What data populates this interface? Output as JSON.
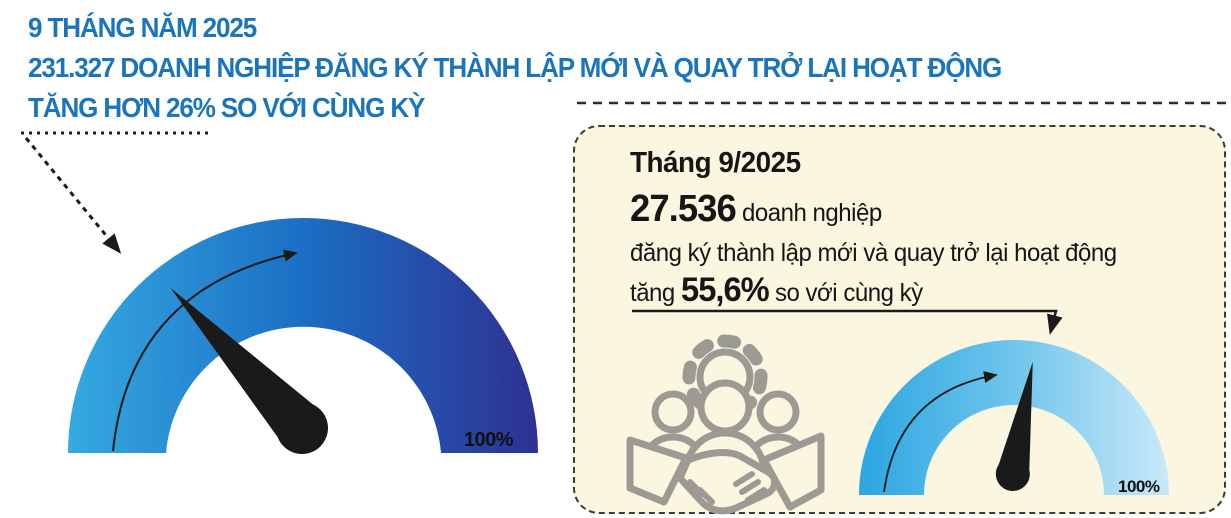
{
  "header": {
    "line1": "9 THÁNG NĂM 2025",
    "line2": "231.327 DOANH NGHIỆP ĐĂNG KÝ THÀNH LẬP MỚI VÀ QUAY TRỞ LẠI HOẠT ĐỘNG",
    "line3": "TĂNG HƠN 26% SO VỚI CÙNG KỲ",
    "color": "#1B75BC"
  },
  "detail_card": {
    "period": "Tháng 9/2025",
    "value": "27.536",
    "value_unit": "doanh nghiệp",
    "description": "đăng ký thành lập mới và quay trở lại hoạt động",
    "growth_prefix": "tăng",
    "growth_value": "55,6%",
    "growth_suffix": "so với cùng kỳ",
    "background": "#FAF6DF",
    "icon": "handshake-people-gear-icon"
  },
  "chart_data": [
    {
      "type": "gauge",
      "label": "9 tháng năm 2025 - doanh nghiệp đăng ký thành lập mới và quay trở lại hoạt động",
      "value_percent": 26,
      "range": [
        0,
        100
      ],
      "max_label": "100%",
      "colors": [
        "#35A9E1",
        "#1B6EC4",
        "#2E3192"
      ],
      "needle_color": "#1A1A1A"
    },
    {
      "type": "gauge",
      "label": "Tháng 9/2025 - doanh nghiệp đăng ký thành lập mới và quay trở lại hoạt động",
      "value_percent": 55.6,
      "range": [
        0,
        100
      ],
      "max_label": "100%",
      "colors": [
        "#2CA6E1",
        "#6FC5EC",
        "#C9E9F9"
      ],
      "needle_color": "#1A1A1A"
    }
  ]
}
